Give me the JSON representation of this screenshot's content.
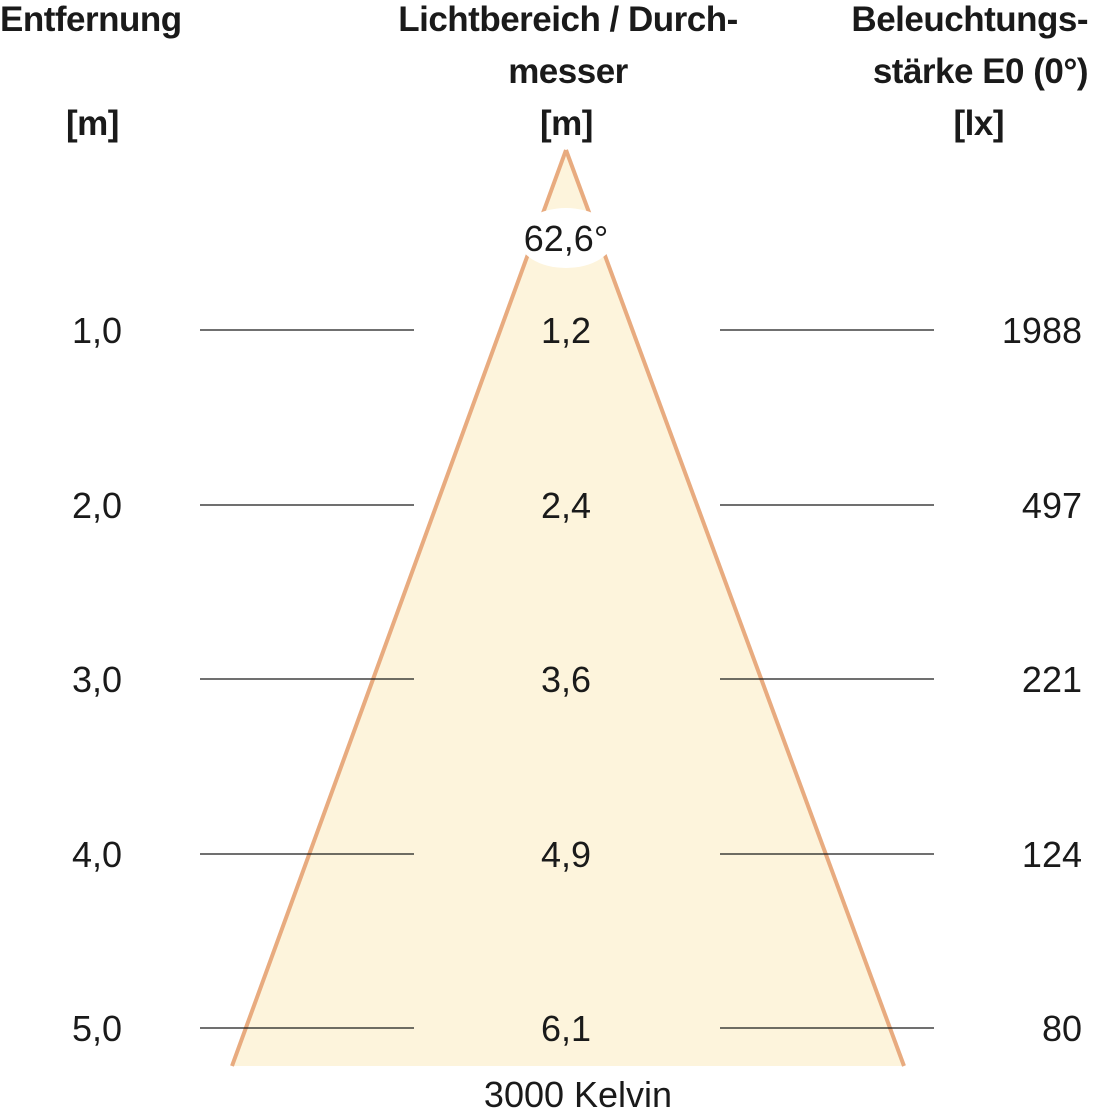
{
  "headers": {
    "distance": {
      "lines": [
        "Entfernung"
      ],
      "unit": "[m]"
    },
    "diameter": {
      "lines": [
        "Lichtbereich / Durch-",
        "messer"
      ],
      "unit": "[m]"
    },
    "illuminance": {
      "lines": [
        "Beleuchtungs-",
        "stärke E0 (0°)"
      ],
      "unit": "[lx]"
    }
  },
  "beam_angle": "62,6°",
  "color_temperature": "3000 Kelvin",
  "rows": [
    {
      "distance": "1,0",
      "diameter": "1,2",
      "illuminance": "1988"
    },
    {
      "distance": "2,0",
      "diameter": "2,4",
      "illuminance": "497"
    },
    {
      "distance": "3,0",
      "diameter": "3,6",
      "illuminance": "221"
    },
    {
      "distance": "4,0",
      "diameter": "4,9",
      "illuminance": "124"
    },
    {
      "distance": "5,0",
      "diameter": "6,1",
      "illuminance": "80"
    }
  ],
  "colors": {
    "cone_fill": "#fdf4dc",
    "cone_edge": "#e8ab7f",
    "guide_line": "#1a1a1a",
    "text": "#1a1a1a"
  }
}
